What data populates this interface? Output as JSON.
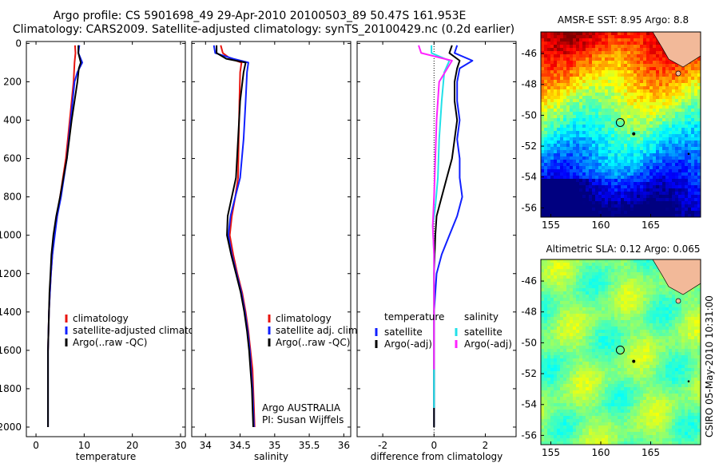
{
  "header": {
    "line1": "Argo profile: CS 5901698_49 29-Apr-2010 20100503_89 50.47S 161.953E",
    "line2": "Climatology: CARS2009. Satellite-adjusted climatology: synTS_20100429.nc (0.2d earlier)"
  },
  "annotation": {
    "program": "Argo AUSTRALIA",
    "pi": "PI: Susan Wijffels"
  },
  "credit": "CSIRO 05-May-2010 10:31:00",
  "maps": [
    {
      "title": "AMSR-E SST: 8.95 Argo: 8.8",
      "kind": "sst",
      "x_ticks": [
        "155",
        "160",
        "165"
      ],
      "y_ticks": [
        "-46",
        "-48",
        "-50",
        "-52",
        "-54",
        "-56"
      ],
      "lon_range": [
        154,
        170
      ],
      "lat_range": [
        -56.6,
        -44.6
      ],
      "argo_position": {
        "lon": 161.953,
        "lat": -50.47
      }
    },
    {
      "title": "Altimetric SLA: 0.12 Argo: 0.065",
      "kind": "sla",
      "x_ticks": [
        "155",
        "160",
        "165"
      ],
      "y_ticks": [
        "-46",
        "-48",
        "-50",
        "-52",
        "-54",
        "-56"
      ],
      "lon_range": [
        154,
        170
      ],
      "lat_range": [
        -56.6,
        -44.6
      ],
      "argo_position": {
        "lon": 161.953,
        "lat": -50.47
      }
    }
  ],
  "colors": {
    "climatology": "#e8150f",
    "satellite": "#1020ff",
    "argo": "#000000",
    "satellite_salinity": "#22e0e8",
    "argo_salinity": "#ff22ff",
    "land": "#f2b999"
  },
  "chart_data": [
    {
      "type": "line",
      "xlabel": "temperature",
      "xlim": [
        -2,
        31
      ],
      "ylim": [
        2050,
        -10
      ],
      "x_ticks": [
        0,
        10,
        20,
        30
      ],
      "y_ticks": [
        0,
        200,
        400,
        600,
        800,
        1000,
        1200,
        1400,
        1600,
        1800,
        2000
      ],
      "legend": [
        "climatology",
        "satellite-adjusted climatology",
        "Argo(..raw -QC)"
      ],
      "legend_position": "lower-middle",
      "series": [
        {
          "name": "climatology",
          "color": "#e8150f",
          "points": [
            [
              8.1,
              10
            ],
            [
              8.2,
              50
            ],
            [
              8.0,
              100
            ],
            [
              7.8,
              200
            ],
            [
              7.4,
              300
            ],
            [
              7.0,
              400
            ],
            [
              6.6,
              500
            ],
            [
              6.2,
              600
            ],
            [
              5.6,
              700
            ],
            [
              5.0,
              800
            ],
            [
              4.4,
              900
            ],
            [
              3.8,
              1000
            ],
            [
              3.4,
              1100
            ],
            [
              3.1,
              1200
            ],
            [
              2.9,
              1300
            ],
            [
              2.7,
              1400
            ],
            [
              2.6,
              1500
            ],
            [
              2.5,
              1600
            ]
          ]
        },
        {
          "name": "satellite-adjusted climatology",
          "color": "#1020ff",
          "points": [
            [
              9.0,
              10
            ],
            [
              8.8,
              50
            ],
            [
              9.6,
              100
            ],
            [
              8.6,
              150
            ],
            [
              8.0,
              200
            ],
            [
              7.6,
              300
            ],
            [
              7.2,
              400
            ],
            [
              6.8,
              500
            ],
            [
              6.4,
              600
            ],
            [
              5.8,
              700
            ],
            [
              5.2,
              800
            ],
            [
              4.4,
              900
            ],
            [
              3.9,
              1000
            ],
            [
              3.4,
              1100
            ],
            [
              3.1,
              1200
            ],
            [
              2.9,
              1300
            ],
            [
              2.7,
              1400
            ],
            [
              2.6,
              1500
            ],
            [
              2.5,
              1600
            ],
            [
              2.5,
              1700
            ],
            [
              2.5,
              1800
            ],
            [
              2.5,
              1900
            ],
            [
              2.5,
              2000
            ]
          ]
        },
        {
          "name": "Argo(..raw -QC)",
          "color": "#000000",
          "points": [
            [
              8.8,
              10
            ],
            [
              8.8,
              50
            ],
            [
              9.3,
              100
            ],
            [
              8.9,
              130
            ],
            [
              8.6,
              200
            ],
            [
              8.0,
              300
            ],
            [
              7.4,
              400
            ],
            [
              6.9,
              500
            ],
            [
              6.4,
              600
            ],
            [
              5.7,
              700
            ],
            [
              5.0,
              800
            ],
            [
              4.2,
              900
            ],
            [
              3.6,
              1000
            ],
            [
              3.2,
              1100
            ],
            [
              3.0,
              1200
            ],
            [
              2.8,
              1300
            ],
            [
              2.7,
              1400
            ],
            [
              2.6,
              1500
            ],
            [
              2.5,
              1600
            ],
            [
              2.5,
              1700
            ],
            [
              2.5,
              1800
            ],
            [
              2.5,
              1900
            ],
            [
              2.5,
              2000
            ]
          ]
        }
      ]
    },
    {
      "type": "line",
      "xlabel": "salinity",
      "xlim": [
        33.8,
        36.1
      ],
      "ylim": [
        2050,
        -10
      ],
      "x_ticks": [
        34,
        34.5,
        35,
        35.5,
        36
      ],
      "y_ticks": [
        0,
        200,
        400,
        600,
        800,
        1000,
        1200,
        1400,
        1600,
        1800,
        2000
      ],
      "legend": [
        "climatology",
        "satellite adj. clim.",
        "Argo(..raw -QC)"
      ],
      "legend_position": "lower-middle",
      "series": [
        {
          "name": "climatology",
          "color": "#e8150f",
          "points": [
            [
              34.22,
              10
            ],
            [
              34.25,
              50
            ],
            [
              34.36,
              80
            ],
            [
              34.52,
              100
            ],
            [
              34.5,
              150
            ],
            [
              34.49,
              300
            ],
            [
              34.48,
              500
            ],
            [
              34.47,
              700
            ],
            [
              34.43,
              800
            ],
            [
              34.38,
              900
            ],
            [
              34.35,
              1000
            ],
            [
              34.4,
              1100
            ],
            [
              34.46,
              1200
            ],
            [
              34.53,
              1300
            ],
            [
              34.58,
              1400
            ],
            [
              34.62,
              1500
            ],
            [
              34.65,
              1600
            ],
            [
              34.68,
              1700
            ],
            [
              34.69,
              1800
            ],
            [
              34.7,
              1900
            ],
            [
              34.71,
              2000
            ]
          ]
        },
        {
          "name": "satellite adj. clim.",
          "color": "#1020ff",
          "points": [
            [
              34.12,
              10
            ],
            [
              34.14,
              50
            ],
            [
              34.4,
              80
            ],
            [
              34.62,
              100
            ],
            [
              34.6,
              150
            ],
            [
              34.58,
              300
            ],
            [
              34.55,
              500
            ],
            [
              34.5,
              700
            ],
            [
              34.43,
              800
            ],
            [
              34.36,
              900
            ],
            [
              34.33,
              1000
            ],
            [
              34.38,
              1100
            ],
            [
              34.45,
              1200
            ],
            [
              34.52,
              1300
            ],
            [
              34.57,
              1400
            ],
            [
              34.61,
              1500
            ],
            [
              34.64,
              1600
            ],
            [
              34.66,
              1700
            ],
            [
              34.68,
              1800
            ],
            [
              34.69,
              1900
            ],
            [
              34.7,
              2000
            ]
          ]
        },
        {
          "name": "Argo(..raw -QC)",
          "color": "#000000",
          "points": [
            [
              34.16,
              10
            ],
            [
              34.16,
              50
            ],
            [
              34.3,
              80
            ],
            [
              34.58,
              100
            ],
            [
              34.55,
              150
            ],
            [
              34.5,
              300
            ],
            [
              34.47,
              500
            ],
            [
              34.44,
              700
            ],
            [
              34.38,
              800
            ],
            [
              34.32,
              900
            ],
            [
              34.31,
              1000
            ],
            [
              34.37,
              1100
            ],
            [
              34.44,
              1200
            ],
            [
              34.51,
              1300
            ],
            [
              34.56,
              1400
            ],
            [
              34.6,
              1500
            ],
            [
              34.63,
              1600
            ],
            [
              34.65,
              1700
            ],
            [
              34.67,
              1800
            ],
            [
              34.68,
              1900
            ],
            [
              34.69,
              2000
            ]
          ]
        }
      ]
    },
    {
      "type": "line",
      "xlabel": "difference from climatology",
      "xlim": [
        -3,
        3.2
      ],
      "ylim": [
        2050,
        -10
      ],
      "x_ticks": [
        -2,
        0,
        2
      ],
      "y_ticks": [
        0,
        200,
        400,
        600,
        800,
        1000,
        1200,
        1400,
        1600,
        1800,
        2000
      ],
      "legend_groups": [
        {
          "heading": "temperature",
          "entries": [
            "satellite",
            "Argo(-adj)"
          ]
        },
        {
          "heading": "salinity",
          "entries": [
            "satellite",
            "Argo(-adj)"
          ]
        }
      ],
      "legend_position": "lower-middle",
      "series": [
        {
          "name": "satellite",
          "group": "temperature",
          "color": "#1020ff",
          "points": [
            [
              0.9,
              10
            ],
            [
              0.8,
              50
            ],
            [
              1.5,
              90
            ],
            [
              1.0,
              130
            ],
            [
              0.9,
              200
            ],
            [
              0.9,
              300
            ],
            [
              1.0,
              400
            ],
            [
              0.9,
              500
            ],
            [
              1.0,
              600
            ],
            [
              1.0,
              700
            ],
            [
              1.1,
              800
            ],
            [
              0.9,
              900
            ],
            [
              0.6,
              1000
            ],
            [
              0.3,
              1100
            ],
            [
              0.1,
              1200
            ],
            [
              0,
              1400
            ],
            [
              0,
              1600
            ],
            [
              0,
              1800
            ],
            [
              0,
              2000
            ]
          ]
        },
        {
          "name": "Argo(-adj)",
          "group": "temperature",
          "color": "#000000",
          "points": [
            [
              0.7,
              10
            ],
            [
              0.6,
              50
            ],
            [
              1.0,
              90
            ],
            [
              0.9,
              130
            ],
            [
              0.8,
              200
            ],
            [
              0.8,
              300
            ],
            [
              0.9,
              400
            ],
            [
              0.8,
              500
            ],
            [
              0.7,
              600
            ],
            [
              0.5,
              700
            ],
            [
              0.3,
              800
            ],
            [
              0.1,
              900
            ],
            [
              0.05,
              1000
            ],
            [
              0,
              1200
            ],
            [
              0,
              1600
            ],
            [
              0,
              2000
            ]
          ]
        },
        {
          "name": "satellite",
          "group": "salinity",
          "color": "#22e0e8",
          "points": [
            [
              -0.1,
              10
            ],
            [
              -0.1,
              50
            ],
            [
              0.6,
              90
            ],
            [
              0.4,
              150
            ],
            [
              0.3,
              300
            ],
            [
              0.2,
              500
            ],
            [
              0.15,
              700
            ],
            [
              0.05,
              850
            ],
            [
              -0.05,
              950
            ],
            [
              0,
              1100
            ],
            [
              0,
              1300
            ],
            [
              0,
              1500
            ],
            [
              0,
              1700
            ],
            [
              0,
              1900
            ]
          ]
        },
        {
          "name": "Argo(-adj)",
          "group": "salinity",
          "color": "#ff22ff",
          "points": [
            [
              -0.6,
              10
            ],
            [
              -0.5,
              50
            ],
            [
              0.7,
              90
            ],
            [
              0.2,
              200
            ],
            [
              0.1,
              400
            ],
            [
              0.05,
              600
            ],
            [
              0,
              800
            ],
            [
              -0.05,
              950
            ],
            [
              0,
              1100
            ],
            [
              0,
              1300
            ],
            [
              0,
              1500
            ],
            [
              0,
              1700
            ]
          ]
        }
      ]
    }
  ]
}
